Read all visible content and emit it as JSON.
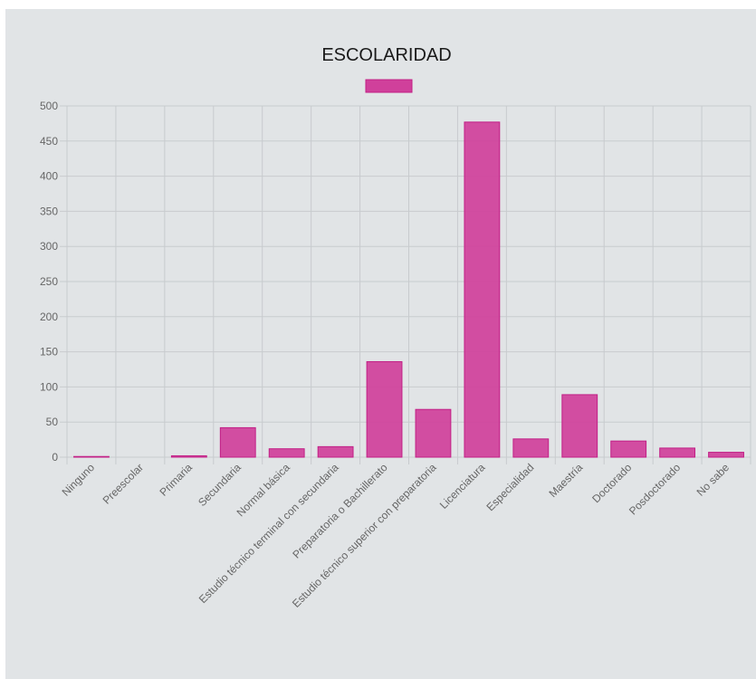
{
  "chart_data": {
    "type": "bar",
    "title": "ESCOLARIDAD",
    "xlabel": "",
    "ylabel": "",
    "categories": [
      "Ninguno",
      "Preescolar",
      "Primaria",
      "Secundaria",
      "Normal básica",
      "Estudio técnico terminal con secundaria",
      "Preparatoria o Bachillerato",
      "Estudio técnico superior con preparatoria",
      "Licenciatura",
      "Especialidad",
      "Maestría",
      "Doctorado",
      "Posdoctorado",
      "No sabe"
    ],
    "series": [
      {
        "values": [
          1,
          0,
          2,
          42,
          12,
          15,
          136,
          68,
          477,
          26,
          89,
          23,
          13,
          7
        ]
      }
    ],
    "ylim": [
      0,
      500
    ],
    "yticks": [
      0,
      50,
      100,
      150,
      200,
      250,
      300,
      350,
      400,
      450,
      500
    ],
    "grid": true,
    "legend": "top",
    "colors": {
      "bar_fill": "#d0409b",
      "bar_border": "#c21f86",
      "grid": "#c8cbce",
      "background": "#e1e4e6"
    }
  }
}
